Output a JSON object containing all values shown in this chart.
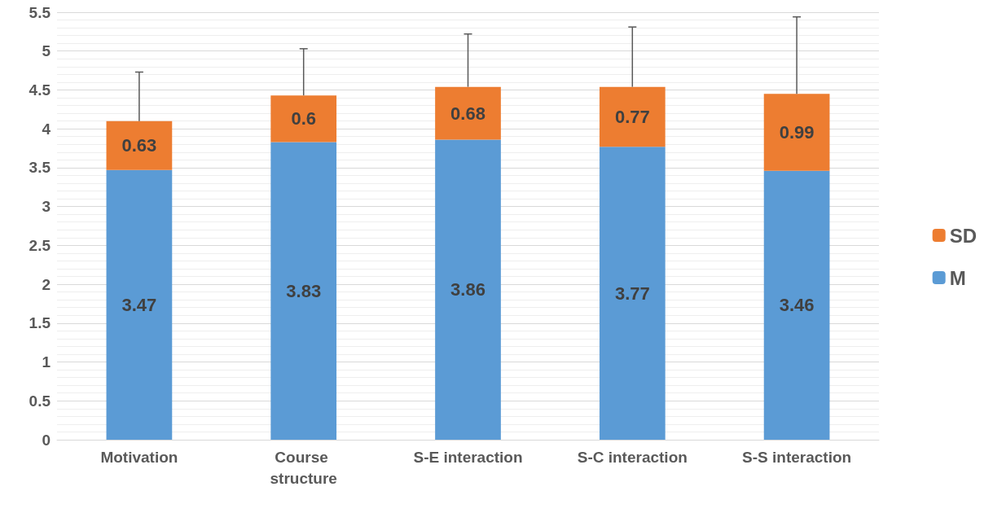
{
  "chart_data": {
    "type": "bar",
    "stacked": true,
    "categories": [
      "Motivation",
      "Course structure",
      "S-E interaction",
      "S-C interaction",
      "S-S interaction"
    ],
    "series": [
      {
        "name": "M",
        "color": "#5b9bd5",
        "values": [
          3.47,
          3.83,
          3.86,
          3.77,
          3.46
        ]
      },
      {
        "name": "SD",
        "color": "#ed7d31",
        "values": [
          0.63,
          0.6,
          0.68,
          0.77,
          0.99
        ],
        "errors": [
          [
            4.1,
            4.73
          ],
          [
            4.43,
            5.03
          ],
          [
            4.54,
            5.22
          ],
          [
            4.54,
            5.31
          ],
          [
            4.45,
            5.44
          ]
        ]
      }
    ],
    "ylim": [
      0,
      5.5
    ],
    "yticks": [
      0,
      0.5,
      1,
      1.5,
      2,
      2.5,
      3,
      3.5,
      4,
      4.5,
      5,
      5.5
    ],
    "grid": "y",
    "legend": "right",
    "data_labels": true
  }
}
